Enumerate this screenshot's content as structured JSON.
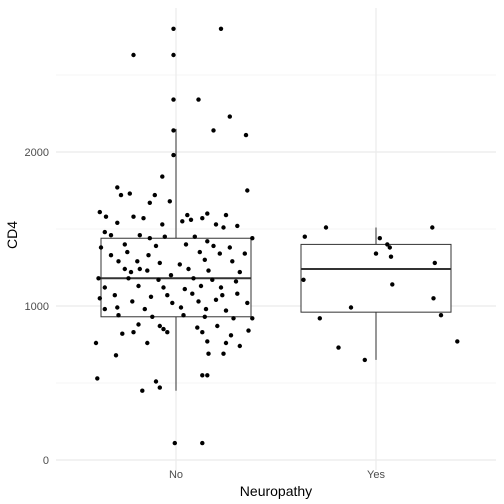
{
  "chart_data": {
    "type": "boxplot-jitter",
    "title": "",
    "xlabel": "Neuropathy",
    "ylabel": "CD4",
    "categories": [
      "No",
      "Yes"
    ],
    "ylim": [
      0,
      2850
    ],
    "yticks": [
      0,
      1000,
      2000
    ],
    "grid": true,
    "colors": {
      "box_fill": "#ffffff",
      "box_stroke": "#333333",
      "point": "#000000",
      "grid": "#ebebeb"
    },
    "boxes": [
      {
        "category": "No",
        "whisker_low": 450,
        "q1": 930,
        "median": 1180,
        "q3": 1440,
        "whisker_high": 2150
      },
      {
        "category": "Yes",
        "whisker_low": 650,
        "q1": 960,
        "median": 1240,
        "q3": 1400,
        "whisker_high": 1510
      }
    ],
    "points": [
      {
        "x": "No",
        "j": -0.34,
        "y": 2630
      },
      {
        "x": "No",
        "j": -0.02,
        "y": 2800
      },
      {
        "x": "No",
        "j": -0.02,
        "y": 2630
      },
      {
        "x": "No",
        "j": 0.36,
        "y": 2800
      },
      {
        "x": "No",
        "j": -0.02,
        "y": 2340
      },
      {
        "x": "No",
        "j": 0.18,
        "y": 2340
      },
      {
        "x": "No",
        "j": 0.43,
        "y": 2230
      },
      {
        "x": "No",
        "j": 0.56,
        "y": 2110
      },
      {
        "x": "No",
        "j": -0.02,
        "y": 2140
      },
      {
        "x": "No",
        "j": 0.3,
        "y": 2140
      },
      {
        "x": "No",
        "j": -0.02,
        "y": 1980
      },
      {
        "x": "No",
        "j": -0.11,
        "y": 1840
      },
      {
        "x": "No",
        "j": -0.47,
        "y": 1770
      },
      {
        "x": "No",
        "j": -0.44,
        "y": 1720
      },
      {
        "x": "No",
        "j": -0.37,
        "y": 1730
      },
      {
        "x": "No",
        "j": -0.17,
        "y": 1720
      },
      {
        "x": "No",
        "j": -0.21,
        "y": 1670
      },
      {
        "x": "No",
        "j": -0.05,
        "y": 1680
      },
      {
        "x": "No",
        "j": 0.57,
        "y": 1750
      },
      {
        "x": "No",
        "j": -0.61,
        "y": 1610
      },
      {
        "x": "No",
        "j": -0.56,
        "y": 1580
      },
      {
        "x": "No",
        "j": -0.34,
        "y": 1580
      },
      {
        "x": "No",
        "j": -0.26,
        "y": 1570
      },
      {
        "x": "No",
        "j": 0.09,
        "y": 1590
      },
      {
        "x": "No",
        "j": 0.25,
        "y": 1600
      },
      {
        "x": "No",
        "j": 0.4,
        "y": 1590
      },
      {
        "x": "No",
        "j": -0.47,
        "y": 1540
      },
      {
        "x": "No",
        "j": -0.11,
        "y": 1530
      },
      {
        "x": "No",
        "j": 0.05,
        "y": 1550
      },
      {
        "x": "No",
        "j": 0.12,
        "y": 1560
      },
      {
        "x": "No",
        "j": 0.21,
        "y": 1570
      },
      {
        "x": "No",
        "j": 0.32,
        "y": 1530
      },
      {
        "x": "No",
        "j": 0.38,
        "y": 1510
      },
      {
        "x": "No",
        "j": 0.49,
        "y": 1520
      },
      {
        "x": "No",
        "j": -0.57,
        "y": 1480
      },
      {
        "x": "No",
        "j": -0.52,
        "y": 1460
      },
      {
        "x": "No",
        "j": -0.29,
        "y": 1460
      },
      {
        "x": "No",
        "j": -0.21,
        "y": 1440
      },
      {
        "x": "No",
        "j": -0.09,
        "y": 1450
      },
      {
        "x": "No",
        "j": 0.15,
        "y": 1450
      },
      {
        "x": "No",
        "j": 0.25,
        "y": 1420
      },
      {
        "x": "No",
        "j": 0.61,
        "y": 1440
      },
      {
        "x": "No",
        "j": -0.6,
        "y": 1380
      },
      {
        "x": "No",
        "j": -0.41,
        "y": 1400
      },
      {
        "x": "No",
        "j": -0.16,
        "y": 1390
      },
      {
        "x": "No",
        "j": 0.08,
        "y": 1400
      },
      {
        "x": "No",
        "j": 0.3,
        "y": 1390
      },
      {
        "x": "No",
        "j": 0.43,
        "y": 1380
      },
      {
        "x": "No",
        "j": -0.52,
        "y": 1330
      },
      {
        "x": "No",
        "j": -0.39,
        "y": 1350
      },
      {
        "x": "No",
        "j": -0.22,
        "y": 1330
      },
      {
        "x": "No",
        "j": 0.19,
        "y": 1350
      },
      {
        "x": "No",
        "j": 0.35,
        "y": 1340
      },
      {
        "x": "No",
        "j": 0.55,
        "y": 1340
      },
      {
        "x": "No",
        "j": -0.46,
        "y": 1290
      },
      {
        "x": "No",
        "j": -0.31,
        "y": 1290
      },
      {
        "x": "No",
        "j": -0.13,
        "y": 1280
      },
      {
        "x": "No",
        "j": 0.03,
        "y": 1270
      },
      {
        "x": "No",
        "j": 0.23,
        "y": 1300
      },
      {
        "x": "No",
        "j": 0.45,
        "y": 1290
      },
      {
        "x": "No",
        "j": -0.41,
        "y": 1240
      },
      {
        "x": "No",
        "j": -0.36,
        "y": 1220
      },
      {
        "x": "No",
        "j": -0.29,
        "y": 1240
      },
      {
        "x": "No",
        "j": -0.23,
        "y": 1230
      },
      {
        "x": "No",
        "j": 0.1,
        "y": 1240
      },
      {
        "x": "No",
        "j": 0.26,
        "y": 1230
      },
      {
        "x": "No",
        "j": 0.51,
        "y": 1220
      },
      {
        "x": "No",
        "j": -0.62,
        "y": 1180
      },
      {
        "x": "No",
        "j": -0.38,
        "y": 1180
      },
      {
        "x": "No",
        "j": -0.14,
        "y": 1170
      },
      {
        "x": "No",
        "j": -0.04,
        "y": 1200
      },
      {
        "x": "No",
        "j": 0.14,
        "y": 1180
      },
      {
        "x": "No",
        "j": 0.29,
        "y": 1170
      },
      {
        "x": "No",
        "j": 0.48,
        "y": 1160
      },
      {
        "x": "No",
        "j": -0.57,
        "y": 1120
      },
      {
        "x": "No",
        "j": -0.3,
        "y": 1130
      },
      {
        "x": "No",
        "j": -0.1,
        "y": 1120
      },
      {
        "x": "No",
        "j": 0.07,
        "y": 1110
      },
      {
        "x": "No",
        "j": 0.2,
        "y": 1130
      },
      {
        "x": "No",
        "j": 0.36,
        "y": 1120
      },
      {
        "x": "No",
        "j": -0.49,
        "y": 1070
      },
      {
        "x": "No",
        "j": -0.2,
        "y": 1060
      },
      {
        "x": "No",
        "j": -0.07,
        "y": 1070
      },
      {
        "x": "No",
        "j": 0.13,
        "y": 1080
      },
      {
        "x": "No",
        "j": 0.37,
        "y": 1070
      },
      {
        "x": "No",
        "j": 0.49,
        "y": 1080
      },
      {
        "x": "No",
        "j": -0.61,
        "y": 1050
      },
      {
        "x": "No",
        "j": -0.35,
        "y": 1030
      },
      {
        "x": "No",
        "j": -0.03,
        "y": 1020
      },
      {
        "x": "No",
        "j": 0.18,
        "y": 1030
      },
      {
        "x": "No",
        "j": 0.32,
        "y": 1040
      },
      {
        "x": "No",
        "j": 0.57,
        "y": 1020
      },
      {
        "x": "No",
        "j": -0.57,
        "y": 980
      },
      {
        "x": "No",
        "j": -0.47,
        "y": 990
      },
      {
        "x": "No",
        "j": -0.25,
        "y": 980
      },
      {
        "x": "No",
        "j": 0.04,
        "y": 990
      },
      {
        "x": "No",
        "j": 0.24,
        "y": 980
      },
      {
        "x": "No",
        "j": 0.4,
        "y": 970
      },
      {
        "x": "No",
        "j": -0.46,
        "y": 940
      },
      {
        "x": "No",
        "j": -0.19,
        "y": 930
      },
      {
        "x": "No",
        "j": 0.06,
        "y": 940
      },
      {
        "x": "No",
        "j": 0.23,
        "y": 930
      },
      {
        "x": "No",
        "j": 0.46,
        "y": 920
      },
      {
        "x": "No",
        "j": 0.61,
        "y": 920
      },
      {
        "x": "No",
        "j": -0.3,
        "y": 880
      },
      {
        "x": "No",
        "j": -0.13,
        "y": 870
      },
      {
        "x": "No",
        "j": -0.1,
        "y": 850
      },
      {
        "x": "No",
        "j": 0.17,
        "y": 860
      },
      {
        "x": "No",
        "j": 0.33,
        "y": 870
      },
      {
        "x": "No",
        "j": 0.58,
        "y": 840
      },
      {
        "x": "No",
        "j": -0.43,
        "y": 820
      },
      {
        "x": "No",
        "j": -0.34,
        "y": 830
      },
      {
        "x": "No",
        "j": -0.07,
        "y": 830
      },
      {
        "x": "No",
        "j": 0.21,
        "y": 830
      },
      {
        "x": "No",
        "j": 0.44,
        "y": 810
      },
      {
        "x": "No",
        "j": -0.64,
        "y": 760
      },
      {
        "x": "No",
        "j": -0.23,
        "y": 760
      },
      {
        "x": "No",
        "j": 0.25,
        "y": 770
      },
      {
        "x": "No",
        "j": 0.4,
        "y": 760
      },
      {
        "x": "No",
        "j": 0.51,
        "y": 740
      },
      {
        "x": "No",
        "j": -0.48,
        "y": 680
      },
      {
        "x": "No",
        "j": 0.26,
        "y": 690
      },
      {
        "x": "No",
        "j": 0.38,
        "y": 690
      },
      {
        "x": "No",
        "j": -0.63,
        "y": 530
      },
      {
        "x": "No",
        "j": -0.16,
        "y": 510
      },
      {
        "x": "No",
        "j": -0.13,
        "y": 470
      },
      {
        "x": "No",
        "j": 0.21,
        "y": 550
      },
      {
        "x": "No",
        "j": 0.25,
        "y": 550
      },
      {
        "x": "No",
        "j": -0.27,
        "y": 450
      },
      {
        "x": "No",
        "j": -0.01,
        "y": 110
      },
      {
        "x": "No",
        "j": 0.21,
        "y": 110
      },
      {
        "x": "Yes",
        "j": -0.57,
        "y": 1450
      },
      {
        "x": "Yes",
        "j": -0.4,
        "y": 1510
      },
      {
        "x": "Yes",
        "j": 0.03,
        "y": 1440
      },
      {
        "x": "Yes",
        "j": 0.09,
        "y": 1400
      },
      {
        "x": "Yes",
        "j": 0.11,
        "y": 1380
      },
      {
        "x": "Yes",
        "j": 0.45,
        "y": 1510
      },
      {
        "x": "Yes",
        "j": 0.0,
        "y": 1340
      },
      {
        "x": "Yes",
        "j": 0.12,
        "y": 1320
      },
      {
        "x": "Yes",
        "j": 0.47,
        "y": 1280
      },
      {
        "x": "Yes",
        "j": -0.58,
        "y": 1170
      },
      {
        "x": "Yes",
        "j": 0.13,
        "y": 1140
      },
      {
        "x": "Yes",
        "j": 0.46,
        "y": 1050
      },
      {
        "x": "Yes",
        "j": -0.2,
        "y": 990
      },
      {
        "x": "Yes",
        "j": -0.45,
        "y": 920
      },
      {
        "x": "Yes",
        "j": 0.52,
        "y": 940
      },
      {
        "x": "Yes",
        "j": -0.3,
        "y": 730
      },
      {
        "x": "Yes",
        "j": 0.65,
        "y": 770
      },
      {
        "x": "Yes",
        "j": -0.09,
        "y": 650
      }
    ]
  }
}
